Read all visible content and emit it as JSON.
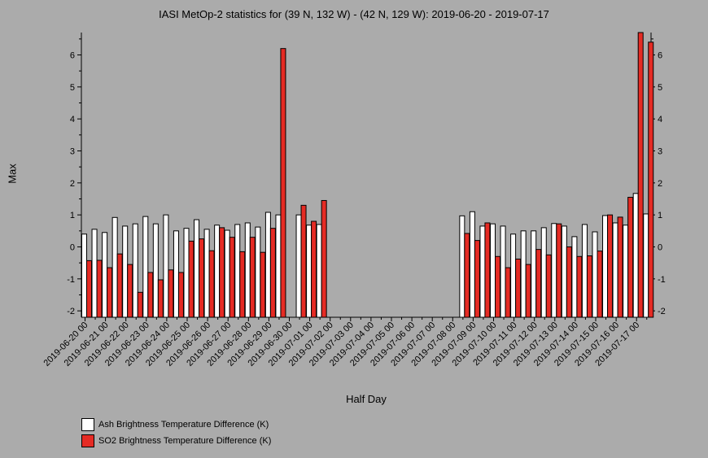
{
  "chart_data": {
    "type": "bar",
    "title": "IASI MetOp-2 statistics for (39 N, 132 W) - (42 N, 129 W): 2019-06-20 - 2019-07-17",
    "xlabel": "Half Day",
    "ylabel": "Max",
    "ylim": [
      -2.2,
      6.7
    ],
    "yticks": [
      "-2",
      "-1",
      "0",
      "1",
      "2",
      "3",
      "4",
      "5",
      "6"
    ],
    "categories": [
      "2019-06-20 00",
      "2019-06-20 12",
      "2019-06-21 00",
      "2019-06-21 12",
      "2019-06-22 00",
      "2019-06-22 12",
      "2019-06-23 00",
      "2019-06-23 12",
      "2019-06-24 00",
      "2019-06-24 12",
      "2019-06-25 00",
      "2019-06-25 12",
      "2019-06-26 00",
      "2019-06-26 12",
      "2019-06-27 00",
      "2019-06-27 12",
      "2019-06-28 00",
      "2019-06-28 12",
      "2019-06-29 00",
      "2019-06-29 12",
      "2019-06-30 00",
      "2019-06-30 12",
      "2019-07-01 00",
      "2019-07-01 12",
      "2019-07-02 00",
      "2019-07-02 12",
      "2019-07-03 00",
      "2019-07-03 12",
      "2019-07-04 00",
      "2019-07-04 12",
      "2019-07-05 00",
      "2019-07-05 12",
      "2019-07-06 00",
      "2019-07-06 12",
      "2019-07-07 00",
      "2019-07-07 12",
      "2019-07-08 00",
      "2019-07-08 12",
      "2019-07-09 00",
      "2019-07-09 12",
      "2019-07-10 00",
      "2019-07-10 12",
      "2019-07-11 00",
      "2019-07-11 12",
      "2019-07-12 00",
      "2019-07-12 12",
      "2019-07-13 00",
      "2019-07-13 12",
      "2019-07-14 00",
      "2019-07-14 12",
      "2019-07-15 00",
      "2019-07-15 12",
      "2019-07-16 00",
      "2019-07-16 12",
      "2019-07-17 00",
      "2019-07-17 12"
    ],
    "tick_labels": [
      "2019-06-20 00",
      "2019-06-21 00",
      "2019-06-22 00",
      "2019-06-23 00",
      "2019-06-24 00",
      "2019-06-25 00",
      "2019-06-26 00",
      "2019-06-27 00",
      "2019-06-28 00",
      "2019-06-29 00",
      "2019-06-30 00",
      "2019-07-01 00",
      "2019-07-02 00",
      "2019-07-03 00",
      "2019-07-04 00",
      "2019-07-05 00",
      "2019-07-06 00",
      "2019-07-07 00",
      "2019-07-08 00",
      "2019-07-09 00",
      "2019-07-10 00",
      "2019-07-11 00",
      "2019-07-12 00",
      "2019-07-13 00",
      "2019-07-14 00",
      "2019-07-15 00",
      "2019-07-16 00",
      "2019-07-17 00"
    ],
    "series": [
      {
        "name": "Ash Brightness Temperature Difference (K)",
        "color": "#ffffff",
        "values": [
          0.4,
          0.55,
          0.45,
          0.92,
          0.65,
          0.72,
          0.95,
          0.72,
          1.0,
          0.5,
          0.58,
          0.85,
          0.55,
          0.68,
          0.52,
          0.7,
          0.75,
          0.62,
          1.08,
          1.0,
          null,
          1.0,
          0.68,
          0.7,
          null,
          null,
          null,
          null,
          null,
          null,
          null,
          null,
          null,
          null,
          null,
          null,
          null,
          0.97,
          1.1,
          0.65,
          0.72,
          0.65,
          0.4,
          0.5,
          0.5,
          0.6,
          0.73,
          0.65,
          0.32,
          0.7,
          0.47,
          0.98,
          0.75,
          0.68,
          1.67,
          1.03
        ]
      },
      {
        "name": "SO2 Brightness Temperature Difference (K)",
        "color": "#e52b24",
        "values": [
          -0.43,
          -0.42,
          -0.65,
          -0.22,
          -0.55,
          -1.42,
          -0.8,
          -1.03,
          -0.72,
          -0.8,
          0.18,
          0.25,
          -0.12,
          0.6,
          0.3,
          -0.15,
          0.3,
          -0.17,
          0.58,
          6.2,
          null,
          1.3,
          0.8,
          1.45,
          null,
          null,
          null,
          null,
          null,
          null,
          null,
          null,
          null,
          null,
          null,
          null,
          null,
          0.42,
          0.2,
          0.75,
          -0.3,
          -0.65,
          -0.38,
          -0.55,
          -0.08,
          -0.25,
          0.72,
          0.0,
          -0.3,
          -0.28,
          -0.13,
          1.0,
          0.93,
          1.55,
          6.7,
          6.4
        ]
      }
    ],
    "grid": false,
    "legend_position": "bottom-left"
  }
}
